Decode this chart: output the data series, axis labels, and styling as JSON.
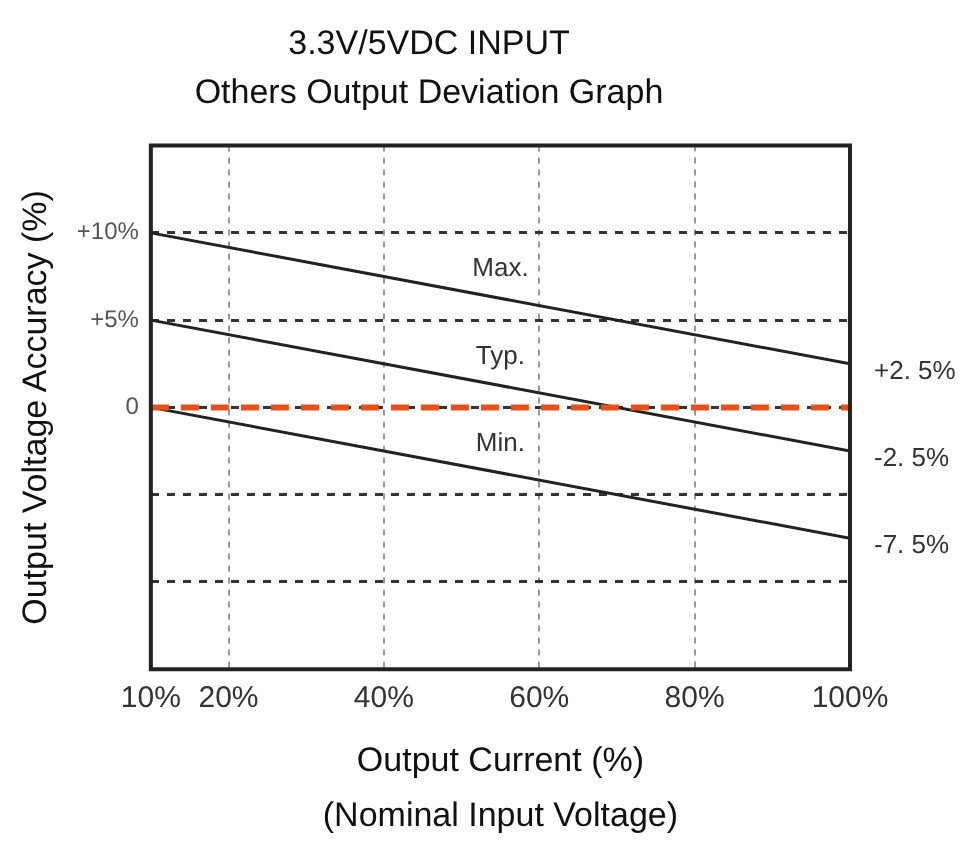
{
  "chart_data": {
    "type": "line",
    "title": "3.3V/5VDC INPUT",
    "subtitle": "Others Output Deviation Graph",
    "xlabel": "Output Current (%)",
    "ylabel": "Output Voltage Accuracy (%)",
    "annotations": [
      "(Nominal Input Voltage)"
    ],
    "x": [
      10,
      100
    ],
    "series": [
      {
        "name": "Max.",
        "color": "#222222",
        "values": [
          10,
          2.5
        ],
        "value_labels": [
          null,
          "+2. 5%"
        ]
      },
      {
        "name": "Typ.",
        "color": "#222222",
        "values": [
          5,
          -2.5
        ],
        "value_labels": [
          null,
          "-2. 5%"
        ]
      },
      {
        "name": "Min.",
        "color": "#222222",
        "values": [
          0,
          -7.5
        ],
        "value_labels": [
          null,
          "-7. 5%"
        ]
      }
    ],
    "xlim": [
      10,
      100
    ],
    "xticks": [
      {
        "value": 10,
        "label": "10%"
      },
      {
        "value": 20,
        "label": "20%"
      },
      {
        "value": 40,
        "label": "40%"
      },
      {
        "value": 60,
        "label": "60%"
      },
      {
        "value": 80,
        "label": "80%"
      },
      {
        "value": 100,
        "label": "100%"
      }
    ],
    "ylim": [
      -15,
      15
    ],
    "yticks": [
      {
        "value": 10,
        "label": "+10%"
      },
      {
        "value": 5,
        "label": "+5%"
      },
      0,
      {
        "value": -5,
        "label": null
      },
      {
        "value": -10,
        "label": null
      }
    ],
    "ref_lines": [
      {
        "axis": "y",
        "value": 0,
        "color": "#e8501a",
        "line_style": "dashed"
      }
    ],
    "grid": true,
    "legend": false,
    "marker": "none",
    "line_style": "solid"
  }
}
